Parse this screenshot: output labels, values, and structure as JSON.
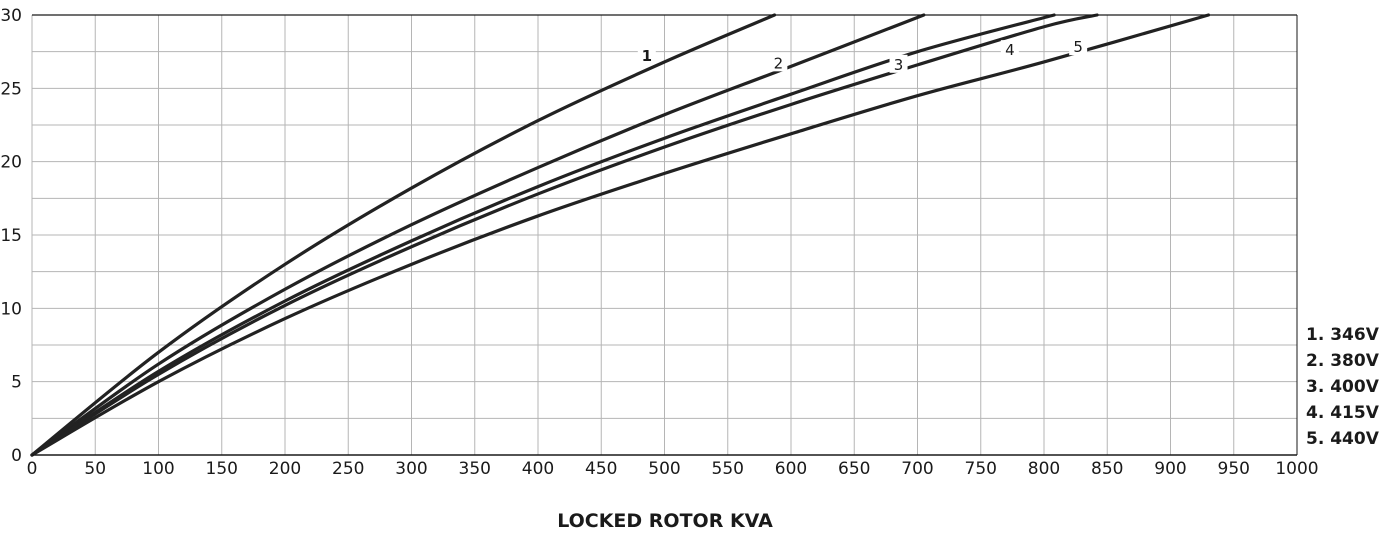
{
  "chart_data": {
    "type": "line",
    "xlabel": "LOCKED ROTOR KVA",
    "ylabel": "",
    "xlim": [
      0,
      1000
    ],
    "ylim": [
      0,
      30
    ],
    "x_ticks": [
      "0",
      "50",
      "100",
      "150",
      "200",
      "250",
      "300",
      "350",
      "400",
      "450",
      "500",
      "550",
      "600",
      "650",
      "700",
      "750",
      "800",
      "850",
      "900",
      "950",
      "1000"
    ],
    "y_ticks": [
      "0",
      "5",
      "10",
      "15",
      "20",
      "25",
      "30"
    ],
    "grid": true,
    "curve_labels": [
      "1",
      "2",
      "3",
      "4",
      "5"
    ],
    "legend": [
      "1. 346V",
      "2. 380V",
      "3. 400V",
      "4. 415V",
      "5. 440V"
    ],
    "series": [
      {
        "name": "1",
        "x": [
          0,
          100,
          200,
          300,
          400,
          500,
          587
        ],
        "y": [
          0,
          7,
          13,
          18.2,
          22.8,
          26.8,
          30
        ]
      },
      {
        "name": "2",
        "x": [
          0,
          100,
          200,
          300,
          400,
          500,
          600,
          705
        ],
        "y": [
          0,
          6.2,
          11.3,
          15.7,
          19.6,
          23.2,
          26.5,
          30
        ]
      },
      {
        "name": "3",
        "x": [
          0,
          100,
          200,
          300,
          400,
          500,
          600,
          700,
          808
        ],
        "y": [
          0,
          5.7,
          10.5,
          14.6,
          18.3,
          21.6,
          24.6,
          27.5,
          30
        ]
      },
      {
        "name": "4",
        "x": [
          0,
          100,
          200,
          300,
          400,
          500,
          600,
          700,
          800,
          842
        ],
        "y": [
          0,
          5.5,
          10.2,
          14.2,
          17.8,
          21,
          23.9,
          26.6,
          29.2,
          30
        ]
      },
      {
        "name": "5",
        "x": [
          0,
          100,
          200,
          300,
          400,
          500,
          600,
          700,
          800,
          930
        ],
        "y": [
          0,
          5.0,
          9.3,
          13,
          16.3,
          19.2,
          21.9,
          24.5,
          26.8,
          30
        ]
      }
    ],
    "colors": {
      "line": "#222222",
      "grid": "#b5b5b5",
      "axis": "#1a1a1a"
    }
  }
}
